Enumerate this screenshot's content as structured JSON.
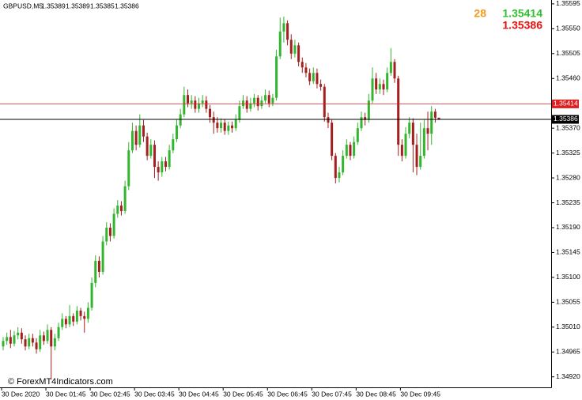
{
  "chart_data": {
    "type": "candlestick",
    "symbol": "GBPUSD,M5",
    "watermark": "© ForexMT4Indicators.com",
    "spread": 28,
    "ask": 1.35414,
    "bull_color": "#33b52f",
    "bear_color": "#a41f1f",
    "ask_color": "#e02020",
    "bid_color": "#000000",
    "ylim": [
      1.34901,
      1.35602
    ],
    "yticks": [
      1.35595,
      {
        "value": 1.3555,
        "label": "1.35550"
      },
      1.35505,
      {
        "value": 1.3546,
        "label": "1.35460"
      },
      {
        "value": 1.3537,
        "label": "1.35370"
      },
      1.35325,
      {
        "value": 1.3528,
        "label": "1.35280"
      },
      1.35235,
      {
        "value": 1.3519,
        "label": "1.35190"
      },
      1.35145,
      {
        "value": 1.351,
        "label": "1.35100"
      },
      1.35055,
      {
        "value": 1.3501,
        "label": "1.35010"
      },
      1.34965,
      {
        "value": 1.3492,
        "label": "1.34920"
      }
    ],
    "xticks": [
      "30 Dec 2020",
      "30 Dec 01:45",
      "30 Dec 02:45",
      "30 Dec 03:45",
      "30 Dec 04:45",
      "30 Dec 05:45",
      "30 Dec 06:45",
      "30 Dec 07:45",
      "30 Dec 08:45",
      "30 Dec 09:45"
    ],
    "open": [
      1.34975,
      1.34985,
      1.34992,
      1.3498,
      1.34995,
      1.35,
      1.34988,
      1.34975,
      1.3499,
      1.34982,
      1.3497,
      1.34995,
      1.34985,
      1.35005,
      1.34975,
      1.3499,
      1.3501,
      1.35025,
      1.35015,
      1.3503,
      1.3502,
      1.3504,
      1.3503,
      1.35025,
      1.35045,
      1.3509,
      1.3513,
      1.3511,
      1.35165,
      1.3519,
      1.35175,
      1.35215,
      1.3523,
      1.3522,
      1.35265,
      1.3533,
      1.35365,
      1.3534,
      1.35375,
      1.35355,
      1.3532,
      1.3534,
      1.353,
      1.3529,
      1.3531,
      1.353,
      1.3533,
      1.3535,
      1.35375,
      1.35395,
      1.3543,
      1.35415,
      1.3542,
      1.35405,
      1.35415,
      1.3542,
      1.35405,
      1.3539,
      1.3538,
      1.3537,
      1.3538,
      1.35365,
      1.35375,
      1.3537,
      1.35385,
      1.3541,
      1.3542,
      1.35405,
      1.35415,
      1.35425,
      1.3541,
      1.3542,
      1.3543,
      1.35415,
      1.35425,
      1.355,
      1.35545,
      1.3556,
      1.3553,
      1.35505,
      1.3552,
      1.3549,
      1.3548,
      1.3547,
      1.35455,
      1.3547,
      1.3545,
      1.35445,
      1.3539,
      1.3538,
      1.3532,
      1.3528,
      1.3529,
      1.3532,
      1.3534,
      1.3532,
      1.35345,
      1.3537,
      1.3539,
      1.35385,
      1.3542,
      1.3546,
      1.3544,
      1.3545,
      1.3544,
      1.3547,
      1.3549,
      1.3546,
      1.3534,
      1.3532,
      1.3536,
      1.3538,
      1.3534,
      1.353,
      1.3532,
      1.3537,
      1.3536,
      1.354,
      1.35389
    ],
    "high": [
      1.34992,
      1.35,
      1.35005,
      1.35003,
      1.3501,
      1.35008,
      1.34995,
      1.34998,
      1.34998,
      1.3499,
      1.35005,
      1.35002,
      1.35015,
      1.3501,
      1.34998,
      1.35018,
      1.35035,
      1.3503,
      1.3505,
      1.35035,
      1.35048,
      1.35045,
      1.35038,
      1.35055,
      1.351,
      1.3514,
      1.35138,
      1.35175,
      1.352,
      1.35198,
      1.35225,
      1.3524,
      1.35238,
      1.35275,
      1.35345,
      1.3538,
      1.35375,
      1.35395,
      1.35385,
      1.35362,
      1.3535,
      1.35348,
      1.3531,
      1.35318,
      1.35318,
      1.3534,
      1.3536,
      1.35385,
      1.35405,
      1.35445,
      1.3544,
      1.3543,
      1.35428,
      1.35425,
      1.3543,
      1.35428,
      1.35412,
      1.354,
      1.3539,
      1.35388,
      1.35386,
      1.35382,
      1.35382,
      1.35395,
      1.3542,
      1.3543,
      1.35428,
      1.35425,
      1.35432,
      1.3543,
      1.35428,
      1.3544,
      1.35438,
      1.35432,
      1.35512,
      1.3557,
      1.35572,
      1.35565,
      1.3554,
      1.3553,
      1.35525,
      1.35498,
      1.35488,
      1.35478,
      1.3548,
      1.35478,
      1.35458,
      1.3545,
      1.35398,
      1.35385,
      1.35325,
      1.353,
      1.3533,
      1.3535,
      1.35345,
      1.35355,
      1.3538,
      1.354,
      1.35398,
      1.35432,
      1.3548,
      1.3547,
      1.3546,
      1.35458,
      1.3548,
      1.35515,
      1.35495,
      1.35465,
      1.3535,
      1.35372,
      1.3539,
      1.35388,
      1.3536,
      1.3538,
      1.35385,
      1.354,
      1.3541,
      1.35405,
      1.35389
    ],
    "low": [
      1.34968,
      1.34978,
      1.34972,
      1.34975,
      1.34988,
      1.3498,
      1.34968,
      1.3497,
      1.34975,
      1.34962,
      1.34965,
      1.34978,
      1.3498,
      1.34915,
      1.34968,
      1.34985,
      1.35005,
      1.35008,
      1.3501,
      1.35012,
      1.35015,
      1.35022,
      1.35,
      1.35018,
      1.3504,
      1.35082,
      1.351,
      1.35105,
      1.35158,
      1.35165,
      1.3517,
      1.35208,
      1.35212,
      1.35215,
      1.35258,
      1.35325,
      1.3533,
      1.35335,
      1.35345,
      1.35312,
      1.35315,
      1.3528,
      1.35275,
      1.35282,
      1.35292,
      1.35295,
      1.35325,
      1.35345,
      1.3537,
      1.3539,
      1.35408,
      1.35405,
      1.35398,
      1.35398,
      1.35408,
      1.35398,
      1.3538,
      1.3536,
      1.35362,
      1.35362,
      1.35358,
      1.35358,
      1.35362,
      1.35365,
      1.3538,
      1.35405,
      1.35398,
      1.354,
      1.35408,
      1.35402,
      1.35405,
      1.35415,
      1.35408,
      1.3541,
      1.3542,
      1.35495,
      1.35525,
      1.3552,
      1.35495,
      1.35498,
      1.35482,
      1.3547,
      1.35462,
      1.35448,
      1.3545,
      1.35442,
      1.35438,
      1.35382,
      1.3537,
      1.35312,
      1.3527,
      1.35272,
      1.35285,
      1.35315,
      1.35312,
      1.35315,
      1.3534,
      1.35365,
      1.35375,
      1.3538,
      1.35415,
      1.35432,
      1.35432,
      1.3543,
      1.35435,
      1.35465,
      1.35452,
      1.3532,
      1.3531,
      1.35315,
      1.35352,
      1.3529,
      1.35285,
      1.35295,
      1.35315,
      1.3533,
      1.3534,
      1.3538,
      1.35385
    ],
    "close": [
      1.34985,
      1.34992,
      1.3498,
      1.34995,
      1.35,
      1.34988,
      1.34975,
      1.3499,
      1.34982,
      1.3497,
      1.34995,
      1.34985,
      1.35005,
      1.34975,
      1.3499,
      1.3501,
      1.35025,
      1.35015,
      1.3503,
      1.3502,
      1.3504,
      1.3503,
      1.35025,
      1.35045,
      1.3509,
      1.3513,
      1.3511,
      1.35165,
      1.3519,
      1.35175,
      1.35215,
      1.3523,
      1.3522,
      1.35265,
      1.3533,
      1.35365,
      1.3534,
      1.35375,
      1.35355,
      1.3532,
      1.3534,
      1.353,
      1.3529,
      1.3531,
      1.353,
      1.3533,
      1.3535,
      1.35375,
      1.35395,
      1.3543,
      1.35415,
      1.3542,
      1.35405,
      1.35415,
      1.3542,
      1.35405,
      1.3539,
      1.3538,
      1.3537,
      1.3538,
      1.35365,
      1.35375,
      1.3537,
      1.35385,
      1.3541,
      1.3542,
      1.35405,
      1.35415,
      1.35425,
      1.3541,
      1.3542,
      1.3543,
      1.35415,
      1.35425,
      1.355,
      1.35545,
      1.3556,
      1.3553,
      1.35505,
      1.3552,
      1.3549,
      1.3548,
      1.3547,
      1.35455,
      1.3547,
      1.3545,
      1.35445,
      1.3539,
      1.3538,
      1.3532,
      1.3528,
      1.3529,
      1.3532,
      1.3534,
      1.3532,
      1.35345,
      1.3537,
      1.3539,
      1.35385,
      1.3542,
      1.3546,
      1.3544,
      1.3545,
      1.3544,
      1.3547,
      1.3549,
      1.3546,
      1.3534,
      1.3532,
      1.3536,
      1.3538,
      1.3534,
      1.353,
      1.3532,
      1.3537,
      1.3536,
      1.354,
      1.35389,
      1.35386
    ]
  }
}
